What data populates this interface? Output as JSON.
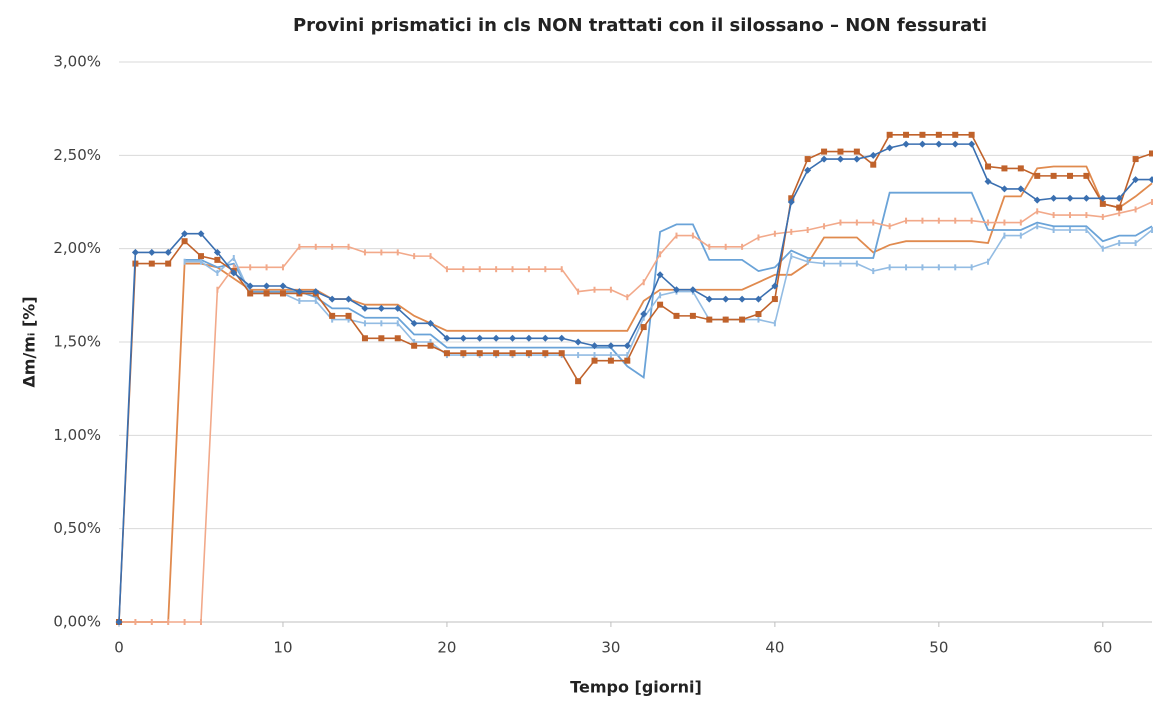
{
  "chart_data": {
    "type": "line",
    "title": "Provini prismatici in cls NON trattati con il silossano – NON fessurati",
    "x_label": "Tempo [giorni]",
    "y_label": "Δm/mᵢ [%]",
    "x": [
      0,
      1,
      2,
      3,
      4,
      5,
      6,
      7,
      8,
      9,
      10,
      11,
      12,
      13,
      14,
      15,
      16,
      17,
      18,
      19,
      20,
      21,
      22,
      23,
      24,
      25,
      26,
      27,
      28,
      29,
      30,
      31,
      32,
      33,
      34,
      35,
      36,
      37,
      38,
      39,
      40,
      41,
      42,
      43,
      44,
      45,
      46,
      47,
      48,
      49,
      50,
      51,
      52,
      53,
      54,
      55,
      56,
      57,
      58,
      59,
      60,
      61,
      62,
      63
    ],
    "xlim": [
      0,
      63
    ],
    "xticks": [
      0,
      10,
      20,
      30,
      40,
      50,
      60
    ],
    "ylim": [
      0,
      3
    ],
    "yticks": [
      {
        "value": 0,
        "label": "0,00%"
      },
      {
        "value": 0.5,
        "label": "0,50%"
      },
      {
        "value": 1,
        "label": "1,00%"
      },
      {
        "value": 1.5,
        "label": "1,50%"
      },
      {
        "value": 2,
        "label": "2,00%"
      },
      {
        "value": 2.5,
        "label": "2,50%"
      },
      {
        "value": 3,
        "label": "3,00%"
      }
    ],
    "grid": true,
    "series": [
      {
        "color": "#e08a4e",
        "marker": "none",
        "values": [
          0,
          0,
          0,
          0,
          1.92,
          1.92,
          1.9,
          1.84,
          1.78,
          1.78,
          1.78,
          1.78,
          1.78,
          1.73,
          1.73,
          1.7,
          1.7,
          1.7,
          1.64,
          1.6,
          1.56,
          1.56,
          1.56,
          1.56,
          1.56,
          1.56,
          1.56,
          1.56,
          1.56,
          1.56,
          1.56,
          1.56,
          1.72,
          1.78,
          1.78,
          1.78,
          1.78,
          1.78,
          1.78,
          1.82,
          1.86,
          1.86,
          1.92,
          2.06,
          2.06,
          2.06,
          1.98,
          2.02,
          2.04,
          2.04,
          2.04,
          2.04,
          2.04,
          2.03,
          2.28,
          2.28,
          2.43,
          2.44,
          2.44,
          2.44,
          2.24,
          2.22,
          2.28,
          2.35
        ]
      },
      {
        "color": "#6aa3d8",
        "marker": "none",
        "values": [
          null,
          null,
          null,
          null,
          1.94,
          1.94,
          1.9,
          1.92,
          1.77,
          1.77,
          1.77,
          1.77,
          1.74,
          1.68,
          1.68,
          1.63,
          1.63,
          1.63,
          1.54,
          1.54,
          1.47,
          1.47,
          1.47,
          1.47,
          1.47,
          1.47,
          1.47,
          1.47,
          1.47,
          1.47,
          1.47,
          1.37,
          1.31,
          2.09,
          2.13,
          2.13,
          1.94,
          1.94,
          1.94,
          1.88,
          1.9,
          1.99,
          1.95,
          1.95,
          1.95,
          1.95,
          1.95,
          2.3,
          2.3,
          2.3,
          2.3,
          2.3,
          2.3,
          2.1,
          2.1,
          2.1,
          2.14,
          2.12,
          2.12,
          2.12,
          2.04,
          2.07,
          2.07,
          2.12
        ]
      },
      {
        "color": "#f2a98a",
        "marker": "dash",
        "values": [
          0,
          0,
          0,
          0,
          0,
          0,
          1.78,
          1.9,
          1.9,
          1.9,
          1.9,
          2.01,
          2.01,
          2.01,
          2.01,
          1.98,
          1.98,
          1.98,
          1.96,
          1.96,
          1.89,
          1.89,
          1.89,
          1.89,
          1.89,
          1.89,
          1.89,
          1.89,
          1.77,
          1.78,
          1.78,
          1.74,
          1.82,
          1.97,
          2.07,
          2.07,
          2.01,
          2.01,
          2.01,
          2.06,
          2.08,
          2.09,
          2.1,
          2.12,
          2.14,
          2.14,
          2.14,
          2.12,
          2.15,
          2.15,
          2.15,
          2.15,
          2.15,
          2.14,
          2.14,
          2.14,
          2.2,
          2.18,
          2.18,
          2.18,
          2.17,
          2.19,
          2.21,
          2.25
        ]
      },
      {
        "color": "#93bce3",
        "marker": "dash",
        "values": [
          null,
          null,
          null,
          null,
          1.93,
          1.93,
          1.87,
          1.95,
          1.76,
          1.76,
          1.76,
          1.72,
          1.72,
          1.62,
          1.62,
          1.6,
          1.6,
          1.6,
          1.5,
          1.5,
          1.43,
          1.43,
          1.43,
          1.43,
          1.43,
          1.43,
          1.43,
          1.43,
          1.43,
          1.43,
          1.43,
          1.43,
          1.63,
          1.75,
          1.77,
          1.77,
          1.62,
          1.62,
          1.62,
          1.62,
          1.6,
          1.96,
          1.93,
          1.92,
          1.92,
          1.92,
          1.88,
          1.9,
          1.9,
          1.9,
          1.9,
          1.9,
          1.9,
          1.93,
          2.07,
          2.07,
          2.12,
          2.1,
          2.1,
          2.1,
          2.0,
          2.03,
          2.03,
          2.1
        ]
      },
      {
        "color": "#c0622b",
        "marker": "square",
        "values": [
          0,
          1.92,
          1.92,
          1.92,
          2.04,
          1.96,
          1.94,
          1.88,
          1.76,
          1.76,
          1.76,
          1.76,
          1.76,
          1.64,
          1.64,
          1.52,
          1.52,
          1.52,
          1.48,
          1.48,
          1.44,
          1.44,
          1.44,
          1.44,
          1.44,
          1.44,
          1.44,
          1.44,
          1.29,
          1.4,
          1.4,
          1.4,
          1.58,
          1.7,
          1.64,
          1.64,
          1.62,
          1.62,
          1.62,
          1.65,
          1.73,
          2.27,
          2.48,
          2.52,
          2.52,
          2.52,
          2.45,
          2.61,
          2.61,
          2.61,
          2.61,
          2.61,
          2.61,
          2.44,
          2.43,
          2.43,
          2.39,
          2.39,
          2.39,
          2.39,
          2.24,
          2.22,
          2.48,
          2.51
        ]
      },
      {
        "color": "#3a6fb0",
        "marker": "diamond",
        "values": [
          0,
          1.98,
          1.98,
          1.98,
          2.08,
          2.08,
          1.98,
          1.87,
          1.8,
          1.8,
          1.8,
          1.77,
          1.77,
          1.73,
          1.73,
          1.68,
          1.68,
          1.68,
          1.6,
          1.6,
          1.52,
          1.52,
          1.52,
          1.52,
          1.52,
          1.52,
          1.52,
          1.52,
          1.5,
          1.48,
          1.48,
          1.48,
          1.65,
          1.86,
          1.78,
          1.78,
          1.73,
          1.73,
          1.73,
          1.73,
          1.8,
          2.25,
          2.42,
          2.48,
          2.48,
          2.48,
          2.5,
          2.54,
          2.56,
          2.56,
          2.56,
          2.56,
          2.56,
          2.36,
          2.32,
          2.32,
          2.26,
          2.27,
          2.27,
          2.27,
          2.27,
          2.27,
          2.37,
          2.37
        ]
      }
    ]
  }
}
